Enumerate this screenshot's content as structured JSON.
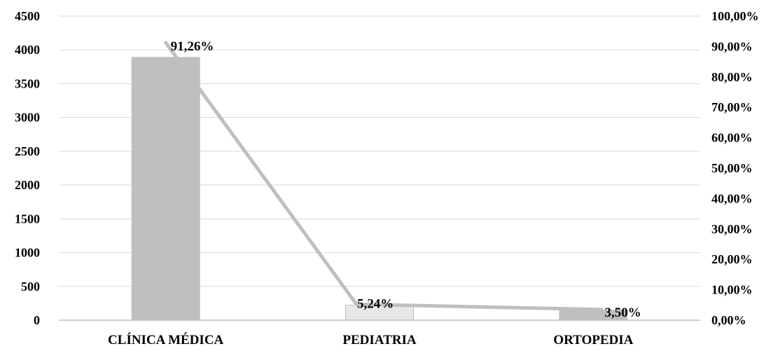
{
  "chart_data": {
    "type": "bar+line",
    "title": "",
    "xlabel": "",
    "ylabel": "",
    "categories": [
      "CLÍNICA MÉDICA",
      "PEDIATRIA",
      "ORTOPEDIA"
    ],
    "series": [
      {
        "type": "bar",
        "axis": "left",
        "values": [
          3890,
          223,
          149
        ],
        "colors": [
          "#bfbfbf",
          "#e7e7e7",
          "#bfbfbf"
        ]
      },
      {
        "type": "line",
        "axis": "right",
        "values": [
          91.26,
          5.24,
          3.5
        ],
        "value_labels": [
          "91,26%",
          "5,24%",
          "3,50%"
        ],
        "color": "#bfbfbf"
      }
    ],
    "y_left": {
      "range": [
        0,
        4500
      ],
      "ticks": [
        0,
        500,
        1000,
        1500,
        2000,
        2500,
        3000,
        3500,
        4000,
        4500
      ],
      "tick_labels": [
        "0",
        "500",
        "1000",
        "1500",
        "2000",
        "2500",
        "3000",
        "3500",
        "4000",
        "4500"
      ]
    },
    "y_right": {
      "range": [
        0,
        100
      ],
      "ticks": [
        0,
        10,
        20,
        30,
        40,
        50,
        60,
        70,
        80,
        90,
        100
      ],
      "tick_labels": [
        "0,00%",
        "10,00%",
        "20,00%",
        "30,00%",
        "40,00%",
        "50,00%",
        "60,00%",
        "70,00%",
        "80,00%",
        "90,00%",
        "100,00%"
      ]
    },
    "grid": true,
    "gridline_color": "#d9d9d9",
    "legend": "none"
  }
}
